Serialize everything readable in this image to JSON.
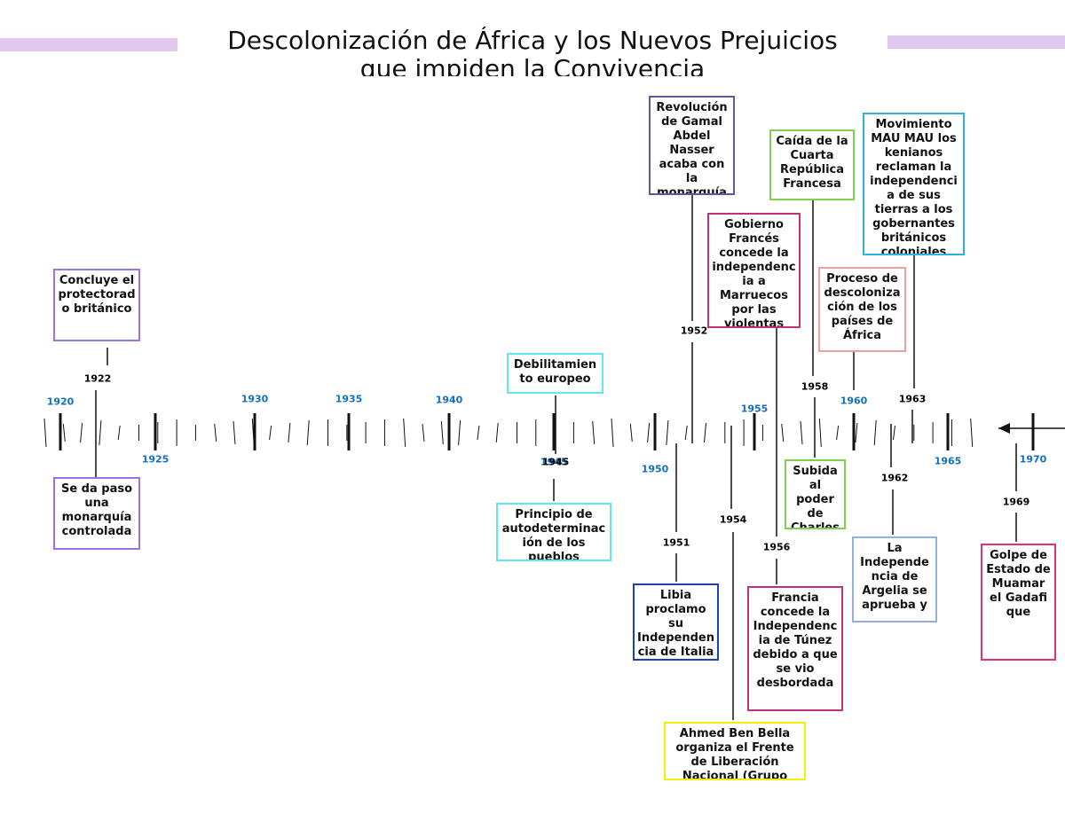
{
  "header": {
    "title": "Descolonización de África y los Nuevos Prejuicios",
    "subtitle": "que impiden la Convivencia"
  },
  "axis_years": [
    "1920",
    "1925",
    "1930",
    "1935",
    "1940",
    "1945",
    "1950",
    "1955",
    "1960",
    "1965",
    "1970"
  ],
  "events": [
    {
      "year": "1922",
      "boxes": [
        {
          "text": "Concluye el protectorado británico",
          "color": "#a070e0"
        },
        {
          "text": "Se da paso una monarquía controlada",
          "color": "#a070e0"
        }
      ]
    },
    {
      "year": "1945",
      "boxes": [
        {
          "text": "Debilitamiento europeo",
          "color": "#60e8f0"
        },
        {
          "text": "Principio de autodeterminación de los pueblos",
          "color": "#60e8f0"
        }
      ]
    },
    {
      "year": "1952",
      "boxes": [
        {
          "text": "Revolución de Gamal Abdel Nasser acaba con la monarquía",
          "color": "#5a5a9a"
        }
      ]
    },
    {
      "year": "1951",
      "boxes": [
        {
          "text": "Libia proclamo su Independencia de Italia",
          "color": "#2040b0"
        }
      ]
    },
    {
      "year": "1954",
      "boxes": [
        {
          "text": "Ahmed Ben Bella organiza el Frente de Liberación Nacional (Grupo",
          "color": "#f0f000"
        }
      ]
    },
    {
      "year": "1956",
      "boxes": [
        {
          "text": "Gobierno Francés concede la independencia a Marruecos por las violentas",
          "color": "#c03080"
        },
        {
          "text": "Francia concede la Independencia de Túnez debido a que se vio desbordada",
          "color": "#c03080"
        }
      ]
    },
    {
      "year": "1958",
      "boxes": [
        {
          "text": "Caída de la Cuarta República Francesa",
          "color": "#80d050"
        },
        {
          "text": "Subida al poder de Charles",
          "color": "#80d050"
        }
      ]
    },
    {
      "year": "1960",
      "boxes": [
        {
          "text": "Proceso de descolonización de los países de África",
          "color": "#f0a0a0"
        }
      ]
    },
    {
      "year": "1962",
      "boxes": [
        {
          "text": "La Independencia de Argelia se aprueba y",
          "color": "#90b0e0"
        }
      ]
    },
    {
      "year": "1963",
      "boxes": [
        {
          "text": "Movimiento MAU MAU los kenianos reclaman la independencia de sus tierras a los gobernantes británicos coloniales",
          "color": "#30b0e0"
        }
      ]
    },
    {
      "year": "1969",
      "boxes": [
        {
          "text": "Golpe de Estado de Muamar el Gadafi que",
          "color": "#e0307a"
        }
      ]
    }
  ]
}
